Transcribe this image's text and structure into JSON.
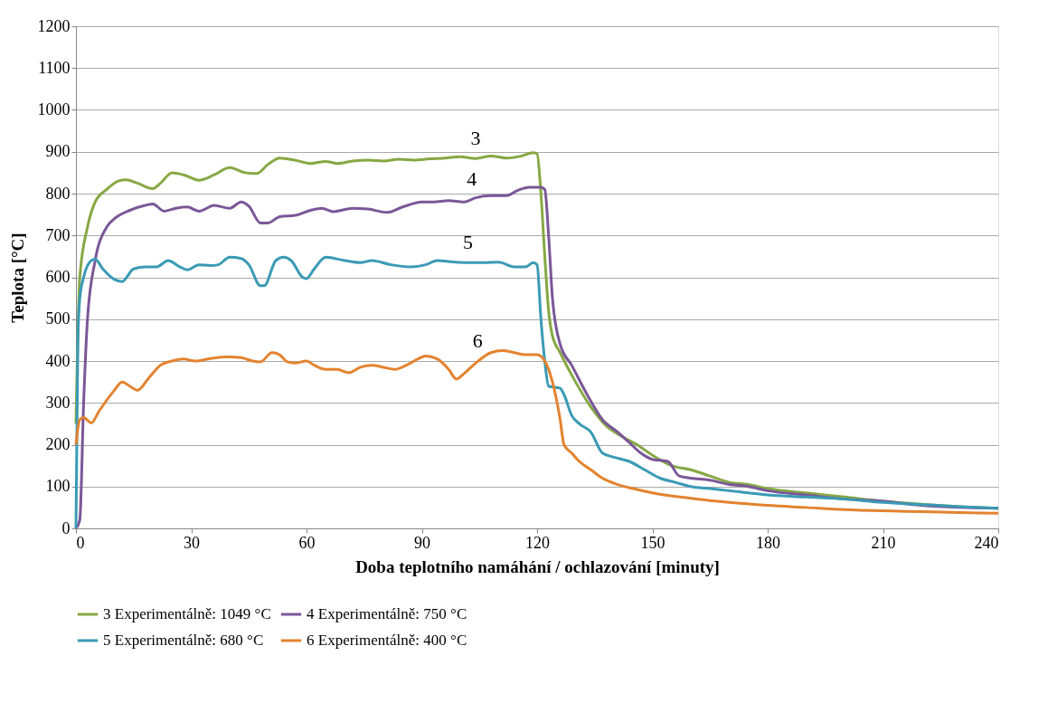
{
  "chart_data": {
    "type": "line",
    "xlabel": "Doba teplotního namáhání / ochlazování  [minuty]",
    "ylabel": "Teplota [°C]",
    "xlim": [
      0,
      240
    ],
    "xticks": [
      0,
      30,
      60,
      90,
      120,
      150,
      180,
      210,
      240
    ],
    "ylim": [
      0,
      1200
    ],
    "yticks": [
      0,
      100,
      200,
      300,
      400,
      500,
      600,
      700,
      800,
      900,
      1000,
      1100,
      1200
    ],
    "grid": "y",
    "legend": "bottom",
    "marker": "none",
    "line_style": "solid",
    "annotations": [
      {
        "text": "3",
        "x": 104,
        "y": 884
      },
      {
        "text": "4",
        "x": 103,
        "y": 787
      },
      {
        "text": "5",
        "x": 102,
        "y": 635
      },
      {
        "text": "6",
        "x": 104.5,
        "y": 400
      }
    ],
    "series": [
      {
        "name": "3  Experimentálně: 1049 °C",
        "color": "#86a843",
        "x": [
          0,
          1,
          3,
          5,
          8,
          11,
          13,
          16,
          20,
          22,
          25,
          28,
          32,
          36,
          40,
          44,
          47,
          50,
          53,
          57,
          61,
          65,
          68,
          72,
          76,
          80,
          84,
          88,
          92,
          96,
          100,
          104,
          108,
          112,
          116,
          119,
          120,
          121,
          122,
          123,
          124,
          126,
          130,
          134,
          138,
          142,
          146,
          150,
          155,
          160,
          165,
          170,
          175,
          180,
          190,
          200,
          210,
          220,
          230,
          240
        ],
        "values": [
          250,
          600,
          720,
          780,
          810,
          830,
          833,
          825,
          812,
          825,
          850,
          845,
          832,
          845,
          862,
          850,
          848,
          870,
          885,
          880,
          872,
          877,
          872,
          878,
          880,
          878,
          882,
          880,
          883,
          885,
          888,
          884,
          890,
          885,
          890,
          898,
          895,
          800,
          650,
          520,
          460,
          420,
          350,
          290,
          245,
          220,
          200,
          175,
          150,
          140,
          125,
          110,
          105,
          95,
          85,
          75,
          65,
          58,
          52,
          48
        ]
      },
      {
        "name": "4  Experimentálně: 750 °C",
        "color": "#7a5798",
        "x": [
          0,
          1,
          2,
          3,
          5,
          8,
          10,
          14,
          18,
          20,
          23,
          26,
          29,
          32,
          36,
          40,
          43,
          45,
          48,
          50,
          53,
          57,
          61,
          64,
          67,
          72,
          76,
          81,
          85,
          90,
          93,
          97,
          101,
          104,
          108,
          112,
          115,
          118,
          121,
          122,
          123,
          124,
          126,
          129,
          133,
          137,
          141,
          144,
          147,
          150,
          154,
          157,
          160,
          165,
          170,
          175,
          180,
          190,
          200,
          210,
          220,
          230,
          240
        ],
        "values": [
          0,
          20,
          300,
          500,
          640,
          720,
          740,
          760,
          772,
          775,
          758,
          765,
          768,
          758,
          772,
          765,
          780,
          770,
          730,
          730,
          745,
          748,
          760,
          765,
          757,
          765,
          763,
          755,
          768,
          780,
          780,
          783,
          780,
          790,
          795,
          795,
          808,
          815,
          815,
          810,
          700,
          550,
          440,
          390,
          320,
          260,
          230,
          205,
          180,
          165,
          160,
          125,
          120,
          115,
          105,
          100,
          90,
          80,
          70,
          65,
          55,
          50,
          48
        ]
      },
      {
        "name": "5  Experimentálně: 680 °C",
        "color": "#3a9ab5",
        "x": [
          0,
          0.5,
          1,
          2,
          4,
          5,
          7,
          10,
          12,
          15,
          18,
          21,
          24,
          27,
          29,
          32,
          35,
          37,
          40,
          43,
          45,
          48,
          49,
          52,
          54,
          56,
          59,
          60,
          62,
          65,
          70,
          74,
          77,
          82,
          87,
          91,
          94,
          98,
          102,
          106,
          110,
          114,
          117,
          119,
          120,
          121,
          122,
          123,
          126,
          127,
          129,
          131,
          134,
          137,
          140,
          144,
          148,
          152,
          156,
          160,
          165,
          170,
          180,
          190,
          200,
          210,
          220,
          230,
          240
        ],
        "values": [
          0,
          450,
          550,
          600,
          640,
          643,
          620,
          595,
          590,
          620,
          625,
          625,
          640,
          625,
          618,
          630,
          628,
          630,
          648,
          645,
          630,
          580,
          580,
          640,
          648,
          640,
          600,
          597,
          620,
          648,
          640,
          635,
          640,
          630,
          625,
          630,
          640,
          637,
          635,
          635,
          636,
          625,
          625,
          635,
          630,
          500,
          400,
          340,
          335,
          320,
          270,
          250,
          230,
          180,
          170,
          160,
          140,
          120,
          110,
          100,
          95,
          90,
          80,
          75,
          70,
          62,
          57,
          52,
          48
        ]
      },
      {
        "name": "6  Experimentálně: 400 °C",
        "color": "#e3832f",
        "x": [
          0,
          1,
          2,
          4,
          6,
          10,
          12,
          14,
          16,
          19,
          22,
          25,
          28,
          31,
          35,
          39,
          43,
          46,
          48,
          51,
          53,
          55,
          57,
          60,
          62,
          65,
          68,
          71,
          74,
          77,
          80,
          83,
          86,
          89,
          91,
          94,
          97,
          99,
          101,
          104,
          108,
          111,
          114,
          117,
          120,
          122,
          124,
          126,
          127,
          129,
          131,
          134,
          137,
          140,
          145,
          150,
          160,
          170,
          180,
          190,
          200,
          210,
          220,
          230,
          240
        ],
        "values": [
          200,
          260,
          265,
          252,
          280,
          330,
          350,
          340,
          330,
          360,
          390,
          400,
          405,
          400,
          406,
          410,
          408,
          400,
          398,
          420,
          415,
          398,
          395,
          400,
          390,
          380,
          380,
          372,
          385,
          390,
          385,
          380,
          390,
          405,
          412,
          405,
          380,
          357,
          370,
          395,
          420,
          425,
          420,
          415,
          415,
          400,
          350,
          260,
          200,
          180,
          160,
          140,
          120,
          108,
          95,
          85,
          72,
          62,
          55,
          50,
          45,
          42,
          40,
          38,
          36
        ]
      }
    ]
  }
}
